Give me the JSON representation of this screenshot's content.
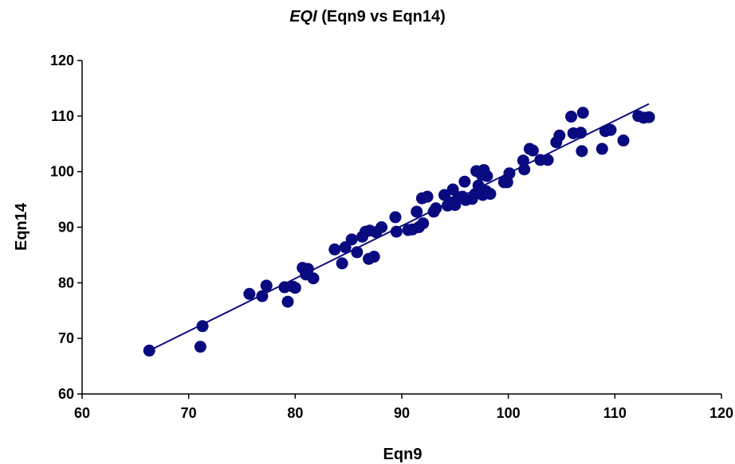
{
  "chart_data": {
    "type": "scatter",
    "title_italic": "EQI",
    "title_rest": " (Eqn9 vs Eqn14)",
    "xlabel": "Eqn9",
    "ylabel": "Eqn14",
    "xlim": [
      60,
      120
    ],
    "ylim": [
      60,
      120
    ],
    "xticks": [
      60,
      70,
      80,
      90,
      100,
      110,
      120
    ],
    "yticks": [
      60,
      70,
      80,
      90,
      100,
      110,
      120
    ],
    "marker_color": "#0A0A80",
    "line_color": "#0A0A80",
    "trendline": {
      "x": [
        66.3,
        113.2
      ],
      "y": [
        67.8,
        112.2
      ]
    },
    "points": [
      [
        66.3,
        67.8
      ],
      [
        71.1,
        68.5
      ],
      [
        71.3,
        72.2
      ],
      [
        75.7,
        78.0
      ],
      [
        76.9,
        77.6
      ],
      [
        77.3,
        79.5
      ],
      [
        79.0,
        79.2
      ],
      [
        79.3,
        76.6
      ],
      [
        79.8,
        79.3
      ],
      [
        80.0,
        79.1
      ],
      [
        80.7,
        82.7
      ],
      [
        81.2,
        82.5
      ],
      [
        81.0,
        81.5
      ],
      [
        81.7,
        80.8
      ],
      [
        83.7,
        86.0
      ],
      [
        84.4,
        83.5
      ],
      [
        84.7,
        86.4
      ],
      [
        85.3,
        87.8
      ],
      [
        85.8,
        85.5
      ],
      [
        86.3,
        88.3
      ],
      [
        86.6,
        89.2
      ],
      [
        86.9,
        84.3
      ],
      [
        87.0,
        89.4
      ],
      [
        87.4,
        84.7
      ],
      [
        87.6,
        89.1
      ],
      [
        88.1,
        90.0
      ],
      [
        89.4,
        91.8
      ],
      [
        89.5,
        89.2
      ],
      [
        90.6,
        89.5
      ],
      [
        91.0,
        89.6
      ],
      [
        91.4,
        92.8
      ],
      [
        91.6,
        90.0
      ],
      [
        91.9,
        95.2
      ],
      [
        92.0,
        90.7
      ],
      [
        92.4,
        95.5
      ],
      [
        93.0,
        92.8
      ],
      [
        93.2,
        93.4
      ],
      [
        94.0,
        95.8
      ],
      [
        94.3,
        93.9
      ],
      [
        94.5,
        94.5
      ],
      [
        94.8,
        96.8
      ],
      [
        95.0,
        94.0
      ],
      [
        95.3,
        95.4
      ],
      [
        95.7,
        95.5
      ],
      [
        95.9,
        98.2
      ],
      [
        96.0,
        94.9
      ],
      [
        96.6,
        95.1
      ],
      [
        96.9,
        96.0
      ],
      [
        97.0,
        100.1
      ],
      [
        97.2,
        97.5
      ],
      [
        97.5,
        99.4
      ],
      [
        97.6,
        95.8
      ],
      [
        97.7,
        100.3
      ],
      [
        97.9,
        96.5
      ],
      [
        98.0,
        99.2
      ],
      [
        98.3,
        96.0
      ],
      [
        99.6,
        98.1
      ],
      [
        99.9,
        98.1
      ],
      [
        100.1,
        99.7
      ],
      [
        101.4,
        102.0
      ],
      [
        101.5,
        100.4
      ],
      [
        102.0,
        104.1
      ],
      [
        102.3,
        103.8
      ],
      [
        103.0,
        102.1
      ],
      [
        103.7,
        102.1
      ],
      [
        104.5,
        105.3
      ],
      [
        104.8,
        106.5
      ],
      [
        105.9,
        109.9
      ],
      [
        106.1,
        106.9
      ],
      [
        106.8,
        107.0
      ],
      [
        106.9,
        103.7
      ],
      [
        107.0,
        110.6
      ],
      [
        108.8,
        104.1
      ],
      [
        109.1,
        107.3
      ],
      [
        109.6,
        107.5
      ],
      [
        110.8,
        105.6
      ],
      [
        112.2,
        110.0
      ],
      [
        112.7,
        109.7
      ],
      [
        113.2,
        109.8
      ]
    ]
  }
}
